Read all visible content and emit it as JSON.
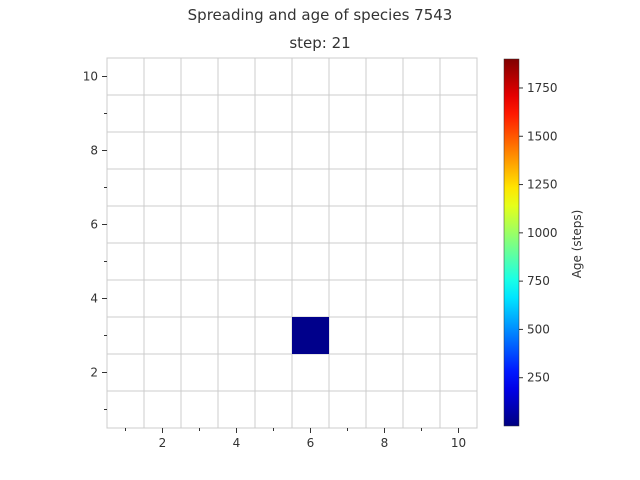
{
  "chart_data": {
    "type": "heatmap",
    "title": "Spreading and age of species 7543",
    "subtitle": "step: 21",
    "xlabel": "",
    "ylabel": "",
    "xlim": [
      0.5,
      10.5
    ],
    "ylim": [
      0.5,
      10.5
    ],
    "x_ticks": [
      2,
      4,
      6,
      8,
      10
    ],
    "y_ticks": [
      2,
      4,
      6,
      8,
      10
    ],
    "grid": true,
    "cells": [
      {
        "x": 6,
        "y": 3,
        "value": 21
      }
    ],
    "colorbar": {
      "label": "Age (steps)",
      "colormap": "jet",
      "range": [
        0,
        1900
      ],
      "ticks": [
        250,
        500,
        750,
        1000,
        1250,
        1500,
        1750
      ]
    }
  }
}
